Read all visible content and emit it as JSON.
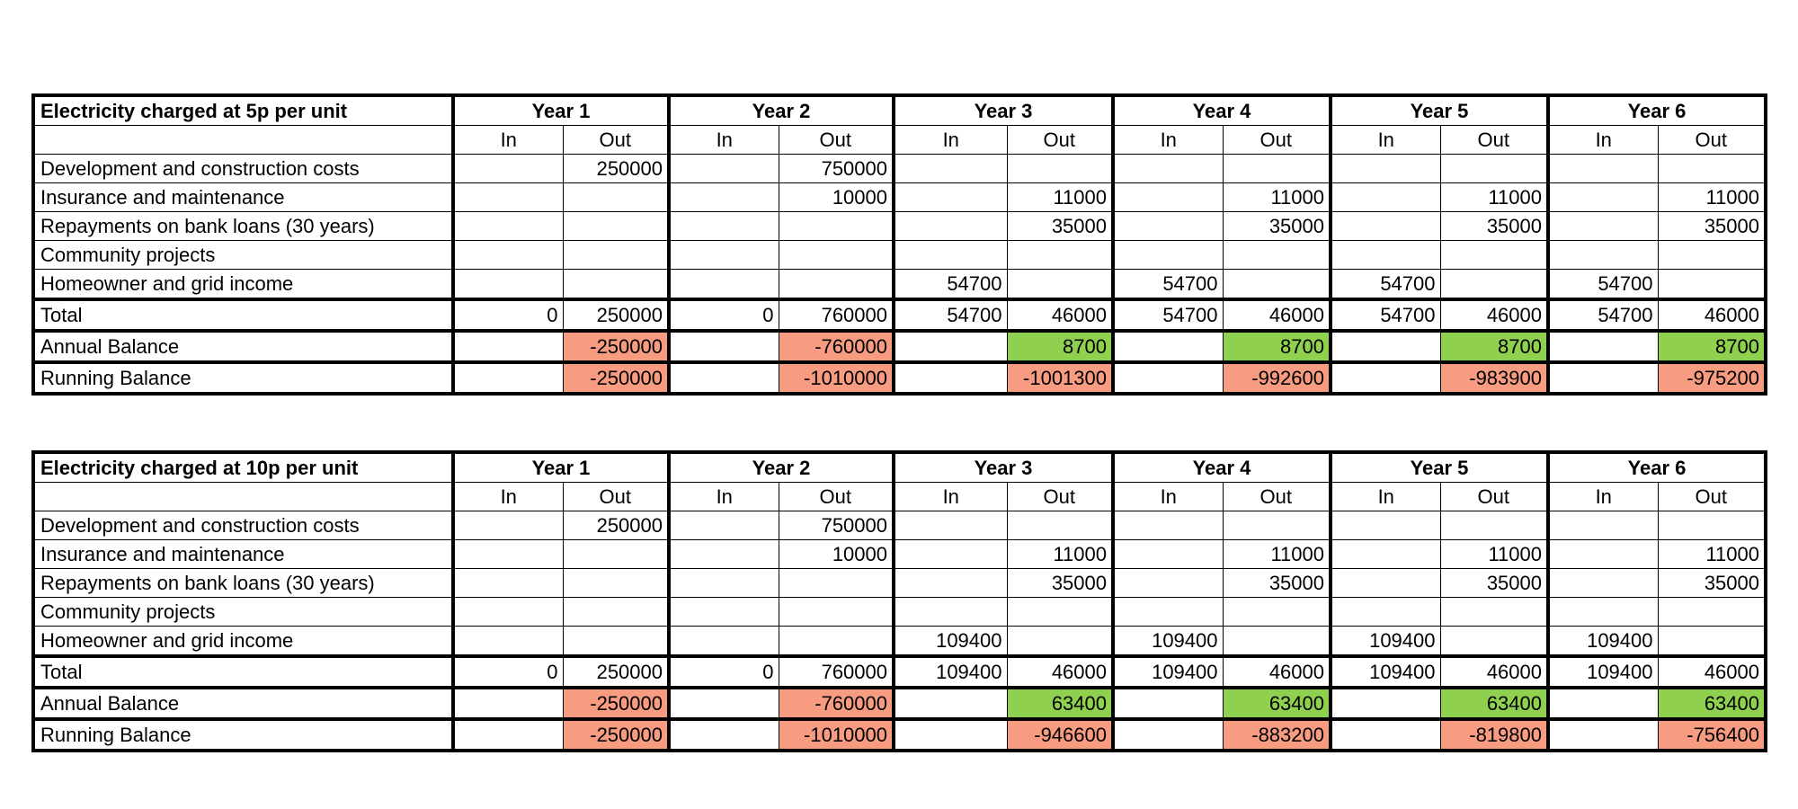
{
  "colors": {
    "negative": "#f79b81",
    "positive": "#8fd14f"
  },
  "tables": [
    {
      "title": "Electricity charged at 5p per unit",
      "years": [
        "Year 1",
        "Year 2",
        "Year 3",
        "Year 4",
        "Year 5",
        "Year 6"
      ],
      "sub_in": "In",
      "sub_out": "Out",
      "rows": [
        {
          "label": "Development and construction costs",
          "cells": [
            "",
            "250000",
            "",
            "750000",
            "",
            "",
            "",
            "",
            "",
            "",
            "",
            ""
          ]
        },
        {
          "label": "Insurance and maintenance",
          "cells": [
            "",
            "",
            "",
            "10000",
            "",
            "11000",
            "",
            "11000",
            "",
            "11000",
            "",
            "11000"
          ]
        },
        {
          "label": "Repayments on bank loans (30 years)",
          "cells": [
            "",
            "",
            "",
            "",
            "",
            "35000",
            "",
            "35000",
            "",
            "35000",
            "",
            "35000"
          ]
        },
        {
          "label": "Community projects",
          "cells": [
            "",
            "",
            "",
            "",
            "",
            "",
            "",
            "",
            "",
            "",
            "",
            ""
          ]
        },
        {
          "label": "Homeowner and grid income",
          "cells": [
            "",
            "",
            "",
            "",
            "54700",
            "",
            "54700",
            "",
            "54700",
            "",
            "54700",
            ""
          ]
        },
        {
          "label": "Total",
          "cells": [
            "0",
            "250000",
            "0",
            "760000",
            "54700",
            "46000",
            "54700",
            "46000",
            "54700",
            "46000",
            "54700",
            "46000"
          ]
        },
        {
          "label": "Annual Balance",
          "cells": [
            "",
            "-250000",
            "",
            "-760000",
            "",
            "8700",
            "",
            "8700",
            "",
            "8700",
            "",
            "8700"
          ]
        },
        {
          "label": "Running Balance",
          "cells": [
            "",
            "-250000",
            "",
            "-1010000",
            "",
            "-1001300",
            "",
            "-992600",
            "",
            "-983900",
            "",
            "-975200"
          ]
        }
      ]
    },
    {
      "title": "Electricity charged at 10p per unit",
      "years": [
        "Year 1",
        "Year 2",
        "Year 3",
        "Year 4",
        "Year 5",
        "Year 6"
      ],
      "sub_in": "In",
      "sub_out": "Out",
      "rows": [
        {
          "label": "Development and construction costs",
          "cells": [
            "",
            "250000",
            "",
            "750000",
            "",
            "",
            "",
            "",
            "",
            "",
            "",
            ""
          ]
        },
        {
          "label": "Insurance and maintenance",
          "cells": [
            "",
            "",
            "",
            "10000",
            "",
            "11000",
            "",
            "11000",
            "",
            "11000",
            "",
            "11000"
          ]
        },
        {
          "label": "Repayments on bank loans (30 years)",
          "cells": [
            "",
            "",
            "",
            "",
            "",
            "35000",
            "",
            "35000",
            "",
            "35000",
            "",
            "35000"
          ]
        },
        {
          "label": "Community projects",
          "cells": [
            "",
            "",
            "",
            "",
            "",
            "",
            "",
            "",
            "",
            "",
            "",
            ""
          ]
        },
        {
          "label": "Homeowner and grid income",
          "cells": [
            "",
            "",
            "",
            "",
            "109400",
            "",
            "109400",
            "",
            "109400",
            "",
            "109400",
            ""
          ]
        },
        {
          "label": "Total",
          "cells": [
            "0",
            "250000",
            "0",
            "760000",
            "109400",
            "46000",
            "109400",
            "46000",
            "109400",
            "46000",
            "109400",
            "46000"
          ]
        },
        {
          "label": "Annual Balance",
          "cells": [
            "",
            "-250000",
            "",
            "-760000",
            "",
            "63400",
            "",
            "63400",
            "",
            "63400",
            "",
            "63400"
          ]
        },
        {
          "label": "Running Balance",
          "cells": [
            "",
            "-250000",
            "",
            "-1010000",
            "",
            "-946600",
            "",
            "-883200",
            "",
            "-819800",
            "",
            "-756400"
          ]
        }
      ]
    }
  ]
}
